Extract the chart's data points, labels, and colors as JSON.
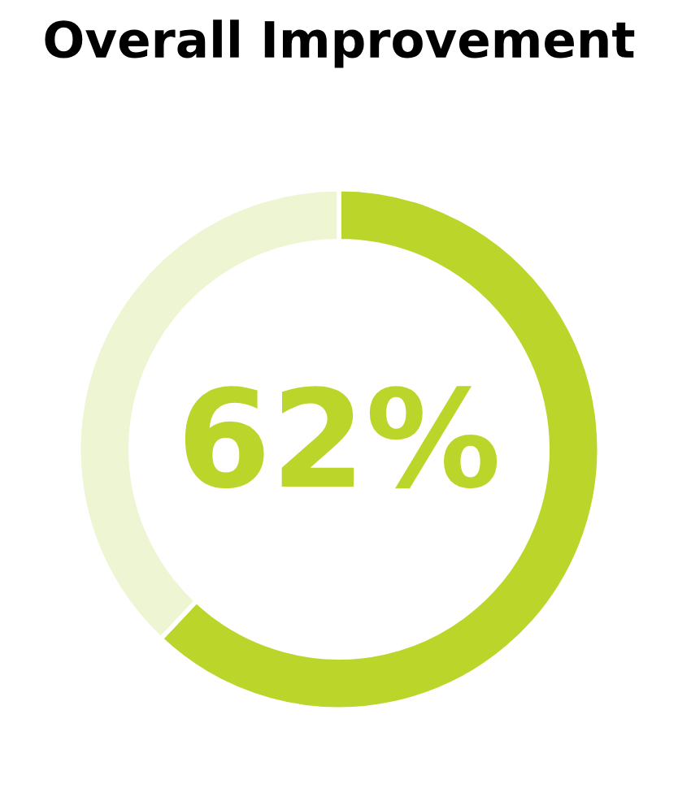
{
  "chart_data": {
    "type": "donut",
    "title": "Overall Improvement",
    "categories": [
      null,
      null
    ],
    "values": [
      62,
      38
    ],
    "colors": [
      "#bcd52a",
      "#eef5d2"
    ],
    "annotations": [
      "62%"
    ],
    "legend": false
  }
}
